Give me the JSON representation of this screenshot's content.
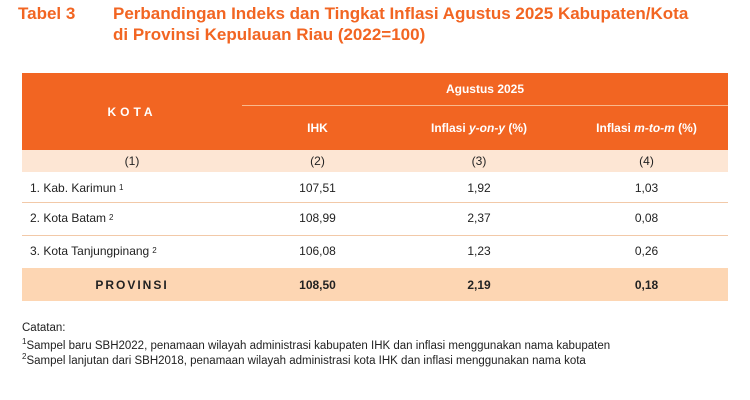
{
  "header": {
    "label": "Tabel 3",
    "title_lines": [
      "Perbandingan Indeks dan Tingkat Inflasi Agustus 2025 Kabupaten/Kota",
      "di Provinsi Kepulauan Riau (2022=100)"
    ]
  },
  "table": {
    "kota_header": "KOTA",
    "period": "Agustus 2025",
    "columns": [
      {
        "parts": [
          "IHK"
        ]
      },
      {
        "parts": [
          "Inflasi ",
          "y-on-y",
          " (%)"
        ]
      },
      {
        "parts": [
          "Inflasi ",
          "m-to-m",
          " (%)"
        ]
      }
    ],
    "column_numbers": [
      "(1)",
      "(2)",
      "(3)",
      "(4)"
    ],
    "rows": [
      {
        "name": "1. Kab. Karimun",
        "sup": "1",
        "values": [
          "107,51",
          "1,92",
          "1,03"
        ]
      },
      {
        "name": "2. Kota Batam",
        "sup": "2",
        "values": [
          "108,99",
          "2,37",
          "0,08"
        ]
      },
      {
        "name": "3. Kota Tanjungpinang",
        "sup": "2",
        "values": [
          "106,08",
          "1,23",
          "0,26"
        ]
      }
    ],
    "total": {
      "name": "PROVINSI",
      "values": [
        "108,50",
        "2,19",
        "0,18"
      ]
    }
  },
  "notes": {
    "heading": "Catatan:",
    "items": [
      {
        "sup": "1",
        "text": "Sampel baru SBH2022, penamaan wilayah administrasi kabupaten IHK dan inflasi menggunakan nama kabupaten"
      },
      {
        "sup": "2",
        "text": "Sampel lanjutan dari SBH2018, penamaan wilayah administrasi kota IHK dan inflasi menggunakan nama kota"
      }
    ]
  }
}
